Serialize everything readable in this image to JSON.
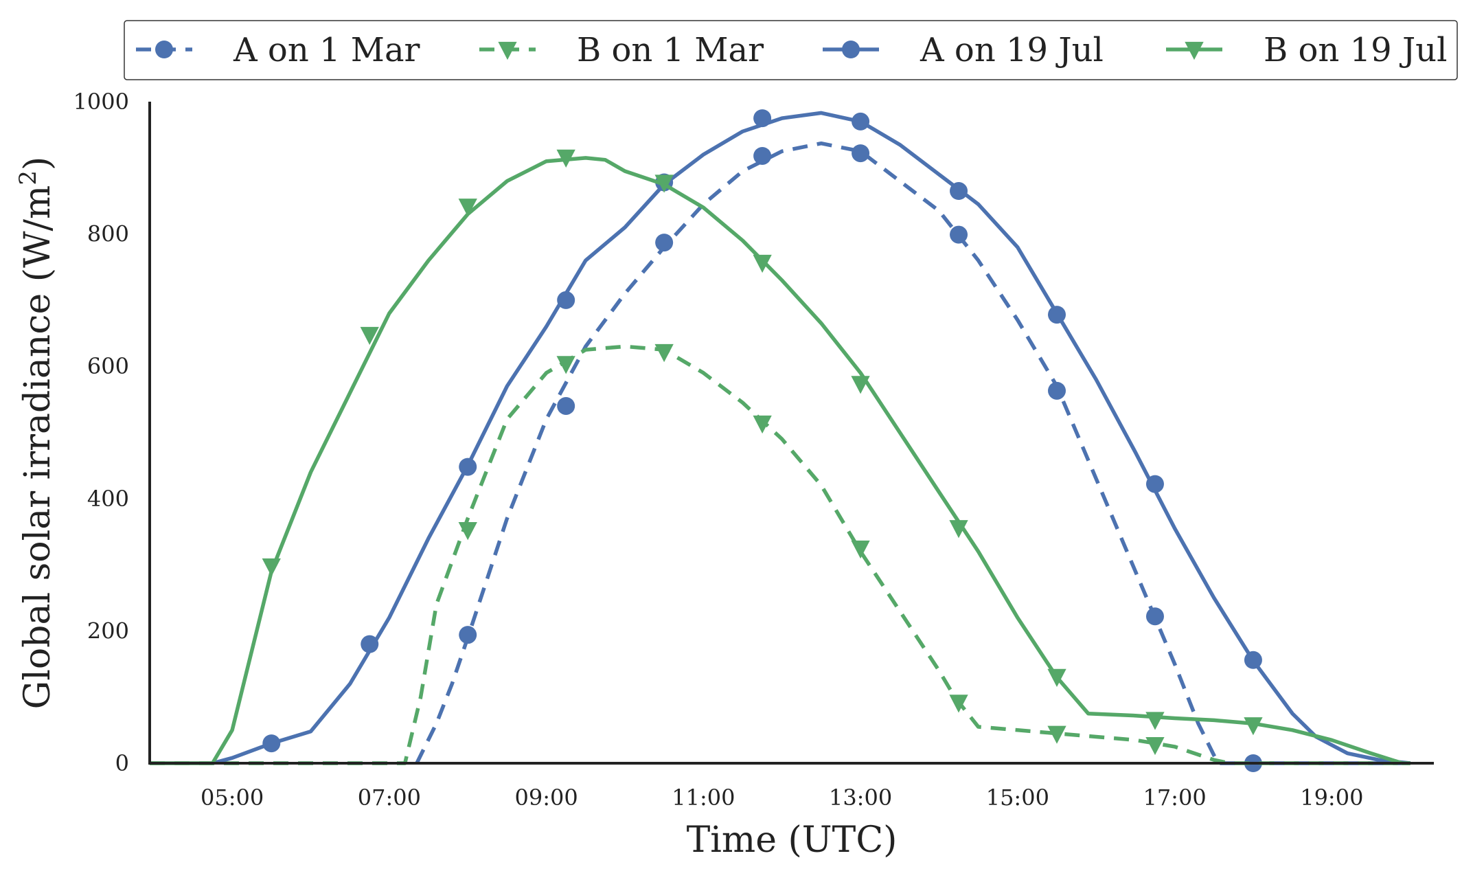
{
  "chart_data": {
    "type": "line",
    "xlabel": "Time (UTC)",
    "ylabel": "Global solar irradiance (W/m",
    "ylabel_superscript": "2",
    "ylabel_suffix": ")",
    "xlim_hours": [
      3.95,
      20.3
    ],
    "ylim": [
      0,
      1000
    ],
    "x_ticks": [
      {
        "hour": 5,
        "label": "05:00"
      },
      {
        "hour": 7,
        "label": "07:00"
      },
      {
        "hour": 9,
        "label": "09:00"
      },
      {
        "hour": 11,
        "label": "11:00"
      },
      {
        "hour": 13,
        "label": "13:00"
      },
      {
        "hour": 15,
        "label": "15:00"
      },
      {
        "hour": 17,
        "label": "17:00"
      },
      {
        "hour": 19,
        "label": "19:00"
      }
    ],
    "y_ticks": [
      {
        "value": 0,
        "label": "0"
      },
      {
        "value": 200,
        "label": "200"
      },
      {
        "value": 400,
        "label": "400"
      },
      {
        "value": 600,
        "label": "600"
      },
      {
        "value": 800,
        "label": "800"
      },
      {
        "value": 1000,
        "label": "1000"
      }
    ],
    "grid": false,
    "legend_position": "top, outside plot, single row",
    "series": [
      {
        "name": "A on 1 Mar",
        "color": "#4c72b0",
        "line_style": "dashed",
        "marker": "circle",
        "line": [
          [
            7.35,
            0
          ],
          [
            7.6,
            60
          ],
          [
            7.8,
            120
          ],
          [
            8.0,
            190
          ],
          [
            8.5,
            370
          ],
          [
            9.0,
            520
          ],
          [
            9.5,
            630
          ],
          [
            10.0,
            710
          ],
          [
            10.5,
            780
          ],
          [
            11.0,
            845
          ],
          [
            11.5,
            895
          ],
          [
            12.0,
            925
          ],
          [
            12.5,
            937
          ],
          [
            13.0,
            925
          ],
          [
            13.5,
            880
          ],
          [
            14.0,
            835
          ],
          [
            14.5,
            760
          ],
          [
            15.0,
            670
          ],
          [
            15.5,
            570
          ],
          [
            16.0,
            430
          ],
          [
            16.5,
            290
          ],
          [
            17.0,
            150
          ],
          [
            17.3,
            60
          ],
          [
            17.55,
            0
          ],
          [
            20.0,
            0
          ]
        ],
        "markers": [
          [
            8.0,
            194
          ],
          [
            9.25,
            540
          ],
          [
            10.5,
            787
          ],
          [
            11.75,
            918
          ],
          [
            13.0,
            922
          ],
          [
            14.25,
            799
          ],
          [
            15.5,
            563
          ],
          [
            16.75,
            222
          ],
          [
            18.0,
            0
          ]
        ]
      },
      {
        "name": "B on 1 Mar",
        "color": "#55a868",
        "line_style": "dashed",
        "marker": "triangle-down",
        "line": [
          [
            3.95,
            0
          ],
          [
            7.2,
            0
          ],
          [
            7.4,
            100
          ],
          [
            7.6,
            240
          ],
          [
            8.0,
            370
          ],
          [
            8.5,
            520
          ],
          [
            9.0,
            590
          ],
          [
            9.5,
            625
          ],
          [
            10.0,
            630
          ],
          [
            10.5,
            625
          ],
          [
            11.0,
            590
          ],
          [
            11.5,
            545
          ],
          [
            12.0,
            490
          ],
          [
            12.5,
            420
          ],
          [
            13.0,
            320
          ],
          [
            13.5,
            230
          ],
          [
            14.0,
            140
          ],
          [
            14.2,
            100
          ],
          [
            14.5,
            55
          ],
          [
            15.0,
            50
          ],
          [
            15.5,
            45
          ],
          [
            16.0,
            40
          ],
          [
            16.5,
            35
          ],
          [
            17.0,
            25
          ],
          [
            17.5,
            5
          ],
          [
            17.7,
            0
          ],
          [
            20.0,
            0
          ]
        ],
        "markers": [
          [
            8.0,
            353
          ],
          [
            9.25,
            604
          ],
          [
            10.5,
            622
          ],
          [
            11.75,
            514
          ],
          [
            13.0,
            325
          ],
          [
            14.25,
            92
          ],
          [
            15.5,
            45
          ],
          [
            16.75,
            28
          ]
        ]
      },
      {
        "name": "A on 19 Jul",
        "color": "#4c72b0",
        "line_style": "solid",
        "marker": "circle",
        "line": [
          [
            4.75,
            0
          ],
          [
            5.0,
            8
          ],
          [
            5.5,
            30
          ],
          [
            6.0,
            48
          ],
          [
            6.5,
            120
          ],
          [
            7.0,
            220
          ],
          [
            7.5,
            340
          ],
          [
            8.0,
            450
          ],
          [
            8.5,
            570
          ],
          [
            9.0,
            660
          ],
          [
            9.5,
            760
          ],
          [
            10.0,
            810
          ],
          [
            10.5,
            875
          ],
          [
            11.0,
            920
          ],
          [
            11.5,
            955
          ],
          [
            12.0,
            975
          ],
          [
            12.5,
            983
          ],
          [
            13.0,
            970
          ],
          [
            13.5,
            935
          ],
          [
            14.0,
            890
          ],
          [
            14.5,
            845
          ],
          [
            15.0,
            780
          ],
          [
            15.5,
            680
          ],
          [
            16.0,
            580
          ],
          [
            16.5,
            470
          ],
          [
            17.0,
            355
          ],
          [
            17.5,
            250
          ],
          [
            18.0,
            155
          ],
          [
            18.5,
            75
          ],
          [
            18.8,
            40
          ],
          [
            19.2,
            15
          ],
          [
            19.6,
            5
          ],
          [
            20.0,
            0
          ]
        ],
        "markers": [
          [
            5.5,
            30
          ],
          [
            6.75,
            180
          ],
          [
            8.0,
            448
          ],
          [
            9.25,
            700
          ],
          [
            10.5,
            878
          ],
          [
            11.75,
            975
          ],
          [
            13.0,
            970
          ],
          [
            14.25,
            865
          ],
          [
            15.5,
            678
          ],
          [
            16.75,
            422
          ],
          [
            18.0,
            156
          ]
        ]
      },
      {
        "name": "B on 19 Jul",
        "color": "#55a868",
        "line_style": "solid",
        "marker": "triangle-down",
        "line": [
          [
            3.95,
            0
          ],
          [
            4.75,
            0
          ],
          [
            5.0,
            50
          ],
          [
            5.5,
            290
          ],
          [
            6.0,
            440
          ],
          [
            6.5,
            560
          ],
          [
            7.0,
            680
          ],
          [
            7.5,
            760
          ],
          [
            8.0,
            830
          ],
          [
            8.5,
            880
          ],
          [
            9.0,
            910
          ],
          [
            9.5,
            915
          ],
          [
            9.75,
            912
          ],
          [
            10.0,
            895
          ],
          [
            10.5,
            875
          ],
          [
            11.0,
            840
          ],
          [
            11.5,
            790
          ],
          [
            12.0,
            730
          ],
          [
            12.5,
            665
          ],
          [
            13.0,
            590
          ],
          [
            13.5,
            500
          ],
          [
            14.0,
            410
          ],
          [
            14.5,
            320
          ],
          [
            15.0,
            220
          ],
          [
            15.5,
            130
          ],
          [
            15.9,
            75
          ],
          [
            16.5,
            72
          ],
          [
            17.0,
            68
          ],
          [
            17.5,
            65
          ],
          [
            18.0,
            60
          ],
          [
            18.5,
            50
          ],
          [
            19.0,
            35
          ],
          [
            19.5,
            15
          ],
          [
            19.9,
            0
          ],
          [
            20.0,
            0
          ]
        ],
        "markers": [
          [
            5.5,
            298
          ],
          [
            6.75,
            648
          ],
          [
            8.0,
            842
          ],
          [
            9.25,
            916
          ],
          [
            10.5,
            878
          ],
          [
            11.75,
            757
          ],
          [
            13.0,
            574
          ],
          [
            14.25,
            356
          ],
          [
            15.5,
            131
          ],
          [
            16.75,
            66
          ],
          [
            18.0,
            58
          ]
        ]
      }
    ]
  }
}
